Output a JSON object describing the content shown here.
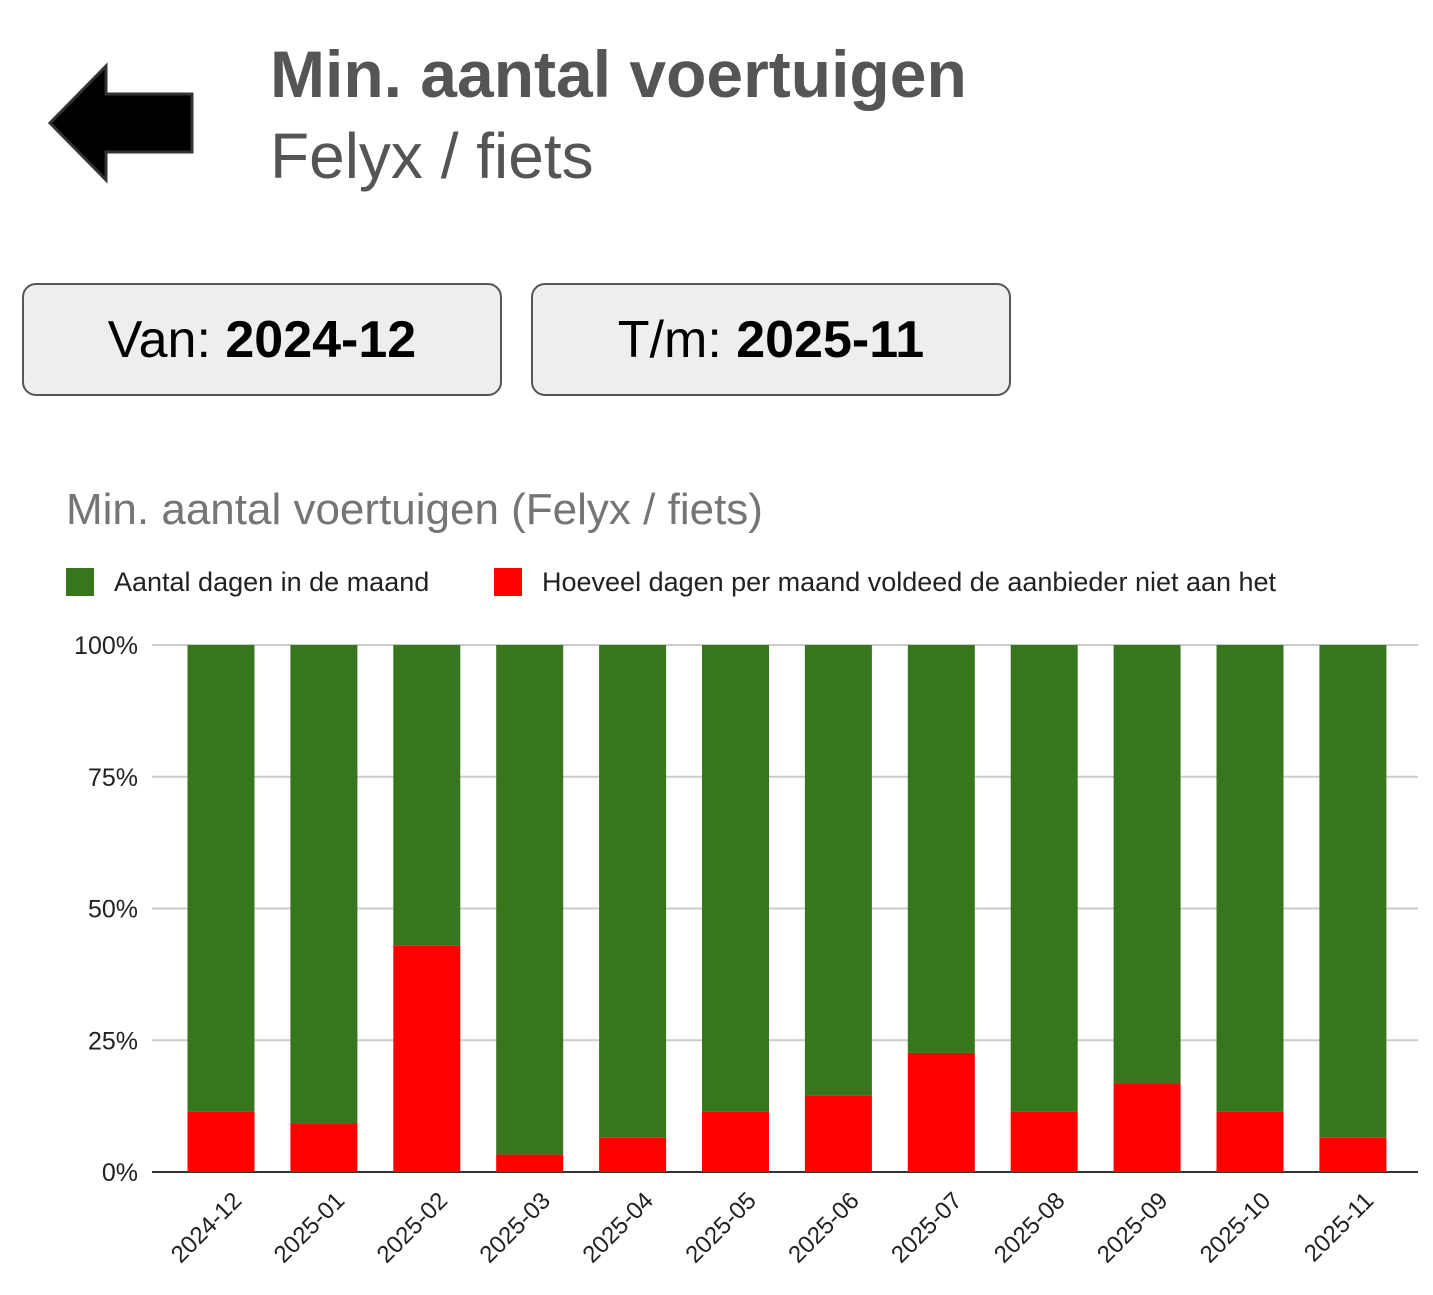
{
  "header": {
    "back_icon": "arrow-left-icon",
    "title": "Min. aantal voertuigen",
    "subtitle": "Felyx / fiets"
  },
  "period": {
    "from_label": "Van:",
    "from_value": "2024-12",
    "to_label": "T/m:",
    "to_value": "2025-11"
  },
  "colors": {
    "green": "#38761d",
    "red": "#ff0000",
    "title_gray": "#757575",
    "grid": "#cccccc",
    "axis": "#333333"
  },
  "chart_data": {
    "type": "bar",
    "stacked": "percent",
    "title": "Min. aantal voertuigen (Felyx / fiets)",
    "categories": [
      "2024-12",
      "2025-01",
      "2025-02",
      "2025-03",
      "2025-04",
      "2025-05",
      "2025-06",
      "2025-07",
      "2025-08",
      "2025-09",
      "2025-10",
      "2025-11"
    ],
    "series": [
      {
        "name": "Hoeveel dagen per maand voldeed de aanbieder niet aan het",
        "color": "#ff0000",
        "values": [
          11.4,
          9.1,
          42.9,
          3.3,
          6.5,
          11.4,
          14.5,
          22.6,
          11.4,
          16.8,
          11.4,
          6.5
        ]
      },
      {
        "name": "Aantal dagen in de maand",
        "color": "#38761d",
        "values": [
          88.6,
          90.9,
          57.1,
          96.7,
          93.5,
          88.6,
          85.5,
          77.4,
          88.6,
          83.2,
          88.6,
          93.5
        ]
      }
    ],
    "legend": [
      {
        "name": "Aantal dagen in de maand",
        "color": "#38761d"
      },
      {
        "name": "Hoeveel dagen per maand voldeed de aanbieder niet aan het",
        "color": "#ff0000"
      }
    ],
    "legend_position": "top",
    "y_ticks": [
      "0%",
      "25%",
      "50%",
      "75%",
      "100%"
    ],
    "ylim": [
      0,
      100
    ],
    "xlabel": "",
    "ylabel": "",
    "grid": true
  }
}
